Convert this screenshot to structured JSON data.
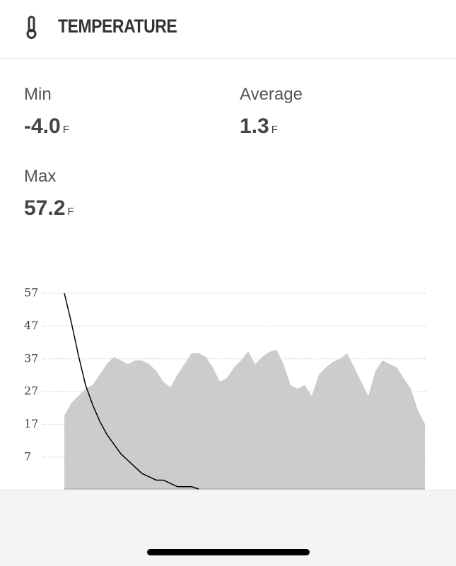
{
  "header": {
    "title": "TEMPERATURE"
  },
  "stats": [
    {
      "label": "Min",
      "value": "-4.0",
      "unit": "F"
    },
    {
      "label": "Average",
      "value": "1.3",
      "unit": "F"
    },
    {
      "label": "Max",
      "value": "57.2",
      "unit": "F"
    }
  ],
  "chart_data": {
    "type": "area-line",
    "ylim": [
      -2.7,
      57
    ],
    "yticks": [
      57,
      47,
      37,
      27,
      17,
      7
    ],
    "grid": true,
    "series": [
      {
        "type": "area",
        "color": "#cccccc",
        "values": [
          19.7,
          23.6,
          25.7,
          27.9,
          29,
          32.2,
          35.4,
          37.6,
          36.5,
          35.4,
          36.5,
          36.5,
          35.4,
          33.3,
          30,
          28.3,
          32.2,
          35.4,
          38.7,
          38.7,
          37.6,
          34.4,
          30,
          31.1,
          34.4,
          36.5,
          39.3,
          35.4,
          37.6,
          39.1,
          39.8,
          35.4,
          29,
          27.9,
          29,
          25.7,
          32.2,
          34.4,
          36.1,
          37,
          38.7,
          34.4,
          30,
          25.7,
          33.3,
          36.5,
          35.4,
          34.4,
          31.1,
          27.9,
          21.4,
          17.1
        ]
      },
      {
        "type": "line",
        "color": "#000000",
        "values": [
          57,
          48,
          38,
          29,
          23,
          18,
          14,
          11,
          8,
          6,
          4,
          2,
          1,
          0,
          0,
          -1,
          -2,
          -2,
          -2,
          -2.7,
          null,
          null,
          null,
          null,
          null,
          null,
          null,
          null,
          null,
          null,
          null,
          null,
          null,
          null,
          null,
          null,
          null,
          null,
          null,
          null,
          null,
          null,
          null,
          null,
          null,
          null,
          null,
          null,
          null,
          null,
          null,
          null
        ]
      }
    ]
  }
}
